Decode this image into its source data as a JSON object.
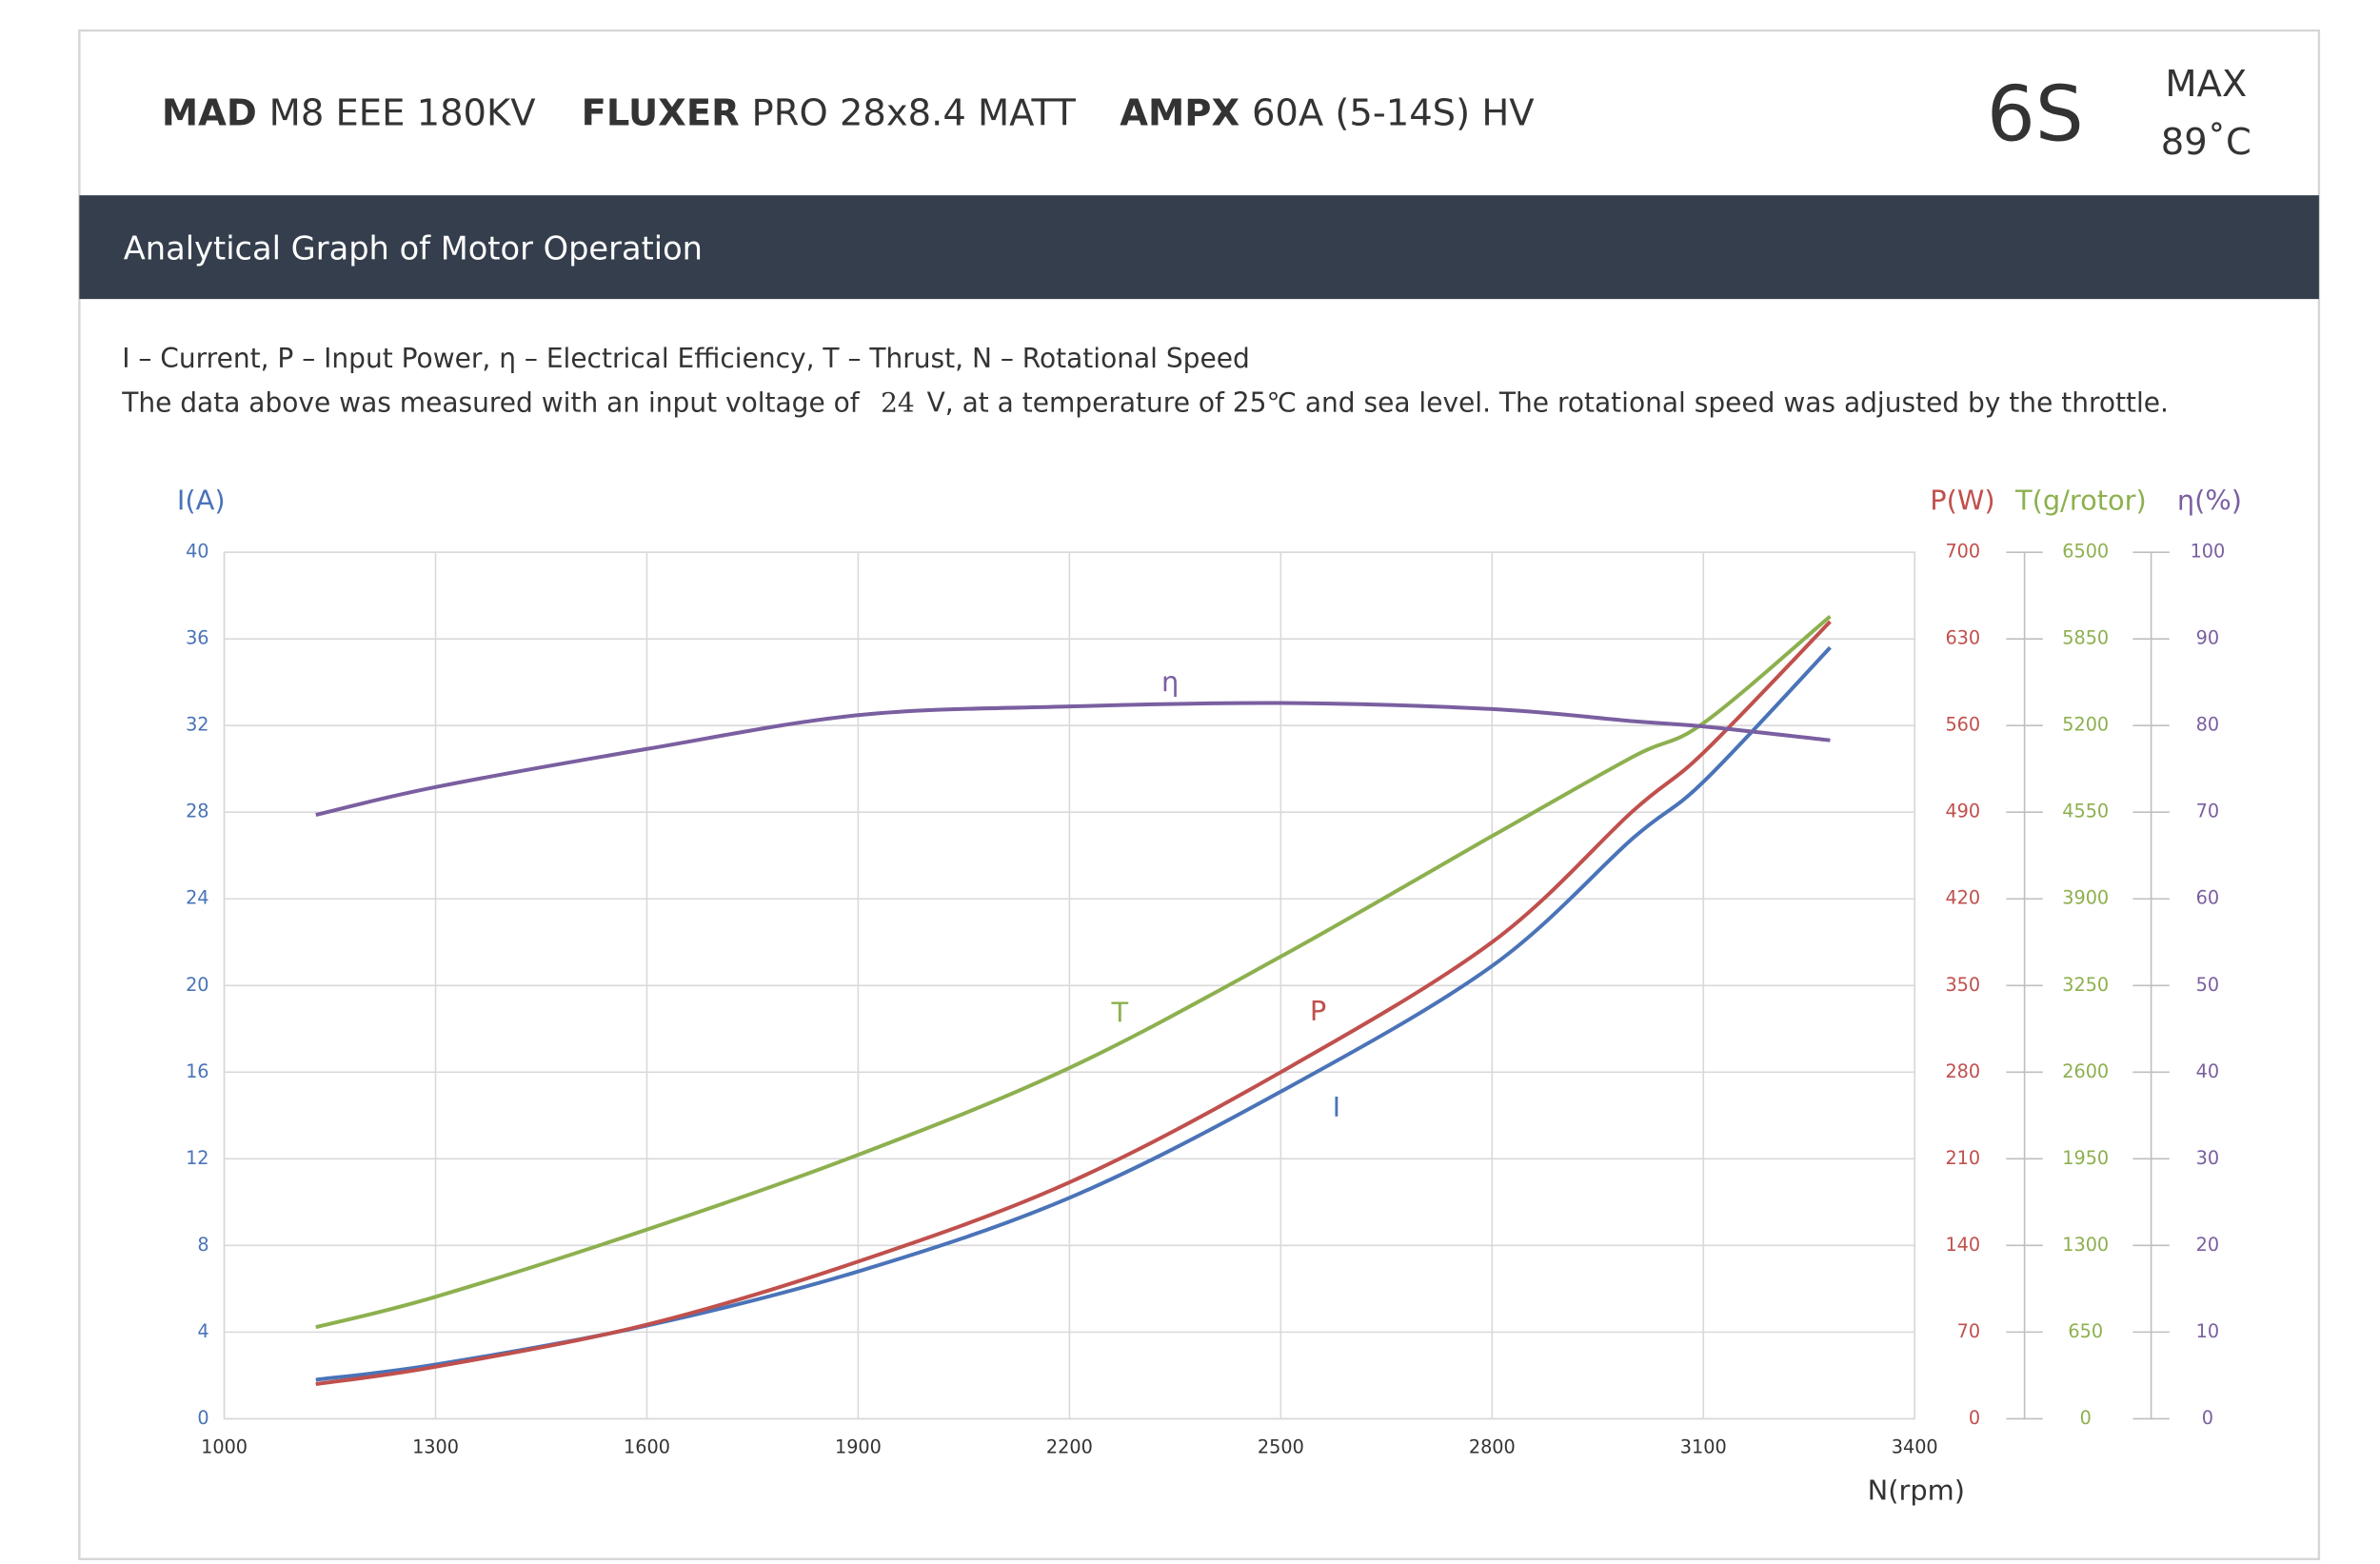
{
  "header": {
    "motor": {
      "brand": "MAD",
      "model": "M8 EEE 180KV"
    },
    "propeller": {
      "brand": "FLUXER",
      "model": "PRO 28x8.4 MATT"
    },
    "esc": {
      "brand": "AMPX",
      "model": "60A (5-14S) HV"
    },
    "cells": "6S",
    "max_label": "MAX",
    "max_temp": "89˚C"
  },
  "band_title": "Analytical Graph of Motor Operation",
  "notes": {
    "legend": "I – Current, P – Input Power, η – Electrical Efficiency, T – Thrust,   N – Rotational Speed",
    "measurement_before": "The data above was measured with an input voltage of",
    "voltage": "24",
    "measurement_after": "V, at a temperature of 25℃ and sea level. The rotational speed was adjusted by the throttle."
  },
  "chart_data": {
    "type": "line",
    "xlabel": "N(rpm)",
    "ylabel": "I(A)",
    "y2label": "P(W)",
    "y3label": "T(g/rotor)",
    "y4label": "η(%)",
    "x": [
      1130,
      1300,
      1600,
      1900,
      2200,
      2500,
      2800,
      3000,
      3100,
      3280
    ],
    "xlim": [
      1000,
      3400
    ],
    "xticks": [
      1000,
      1300,
      1600,
      1900,
      2200,
      2500,
      2800,
      3100,
      3400
    ],
    "ylim": [
      0,
      40
    ],
    "yticks": [
      0,
      4,
      8,
      12,
      16,
      20,
      24,
      28,
      32,
      36,
      40
    ],
    "y2lim": [
      0,
      700
    ],
    "y2ticks": [
      0,
      70,
      140,
      210,
      280,
      350,
      420,
      490,
      560,
      630,
      700
    ],
    "y3lim": [
      0,
      6500
    ],
    "y3ticks": [
      0,
      650,
      1300,
      1950,
      2600,
      3250,
      3900,
      4550,
      5200,
      5850,
      6500
    ],
    "y4lim": [
      0,
      100
    ],
    "y4ticks": [
      0,
      10,
      20,
      30,
      40,
      50,
      60,
      70,
      80,
      90,
      100
    ],
    "grid": true,
    "series": [
      {
        "name": "I",
        "color": "#4a73b8",
        "axis": "y",
        "values": [
          1.8,
          2.5,
          4.3,
          6.8,
          10.2,
          15.1,
          20.9,
          26.8,
          29.4,
          35.6
        ]
      },
      {
        "name": "P",
        "color": "#c0504d",
        "axis": "y2",
        "values": [
          28,
          42,
          76,
          127,
          191,
          280,
          385,
          491,
          538,
          644
        ]
      },
      {
        "name": "T",
        "color": "#8db04f",
        "axis": "y3",
        "values": [
          687,
          915,
          1419,
          1980,
          2632,
          3467,
          4371,
          4966,
          5218,
          6019
        ]
      },
      {
        "name": "η",
        "color": "#7a5fa0",
        "axis": "y4",
        "values": [
          69.7,
          72.9,
          77.3,
          81.2,
          82.2,
          82.6,
          81.9,
          80.5,
          79.9,
          78.3
        ]
      }
    ]
  }
}
